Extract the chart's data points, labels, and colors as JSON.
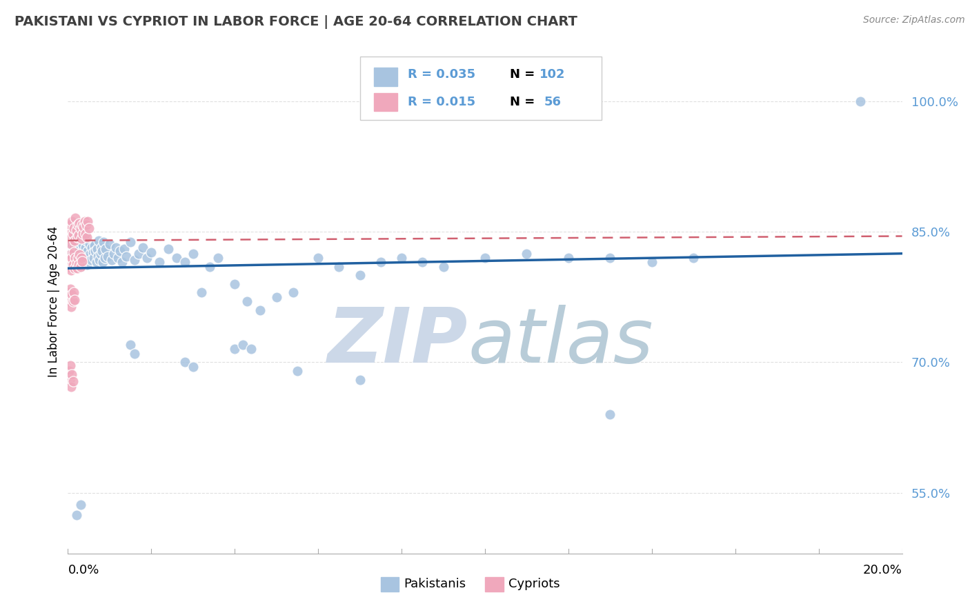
{
  "title": "PAKISTANI VS CYPRIOT IN LABOR FORCE | AGE 20-64 CORRELATION CHART",
  "source_text": "Source: ZipAtlas.com",
  "ylabel": "In Labor Force | Age 20-64",
  "yticks": [
    0.55,
    0.7,
    0.85,
    1.0
  ],
  "ytick_labels": [
    "55.0%",
    "70.0%",
    "85.0%",
    "100.0%"
  ],
  "xlim": [
    0.0,
    0.2
  ],
  "ylim": [
    0.48,
    1.06
  ],
  "blue_color": "#a8c4e0",
  "pink_color": "#f0a8bc",
  "blue_line_color": "#2060a0",
  "pink_line_color": "#d06070",
  "title_color": "#404040",
  "axis_label_color": "#5b9bd5",
  "blue_trend_x0": 0.0,
  "blue_trend_y0": 0.808,
  "blue_trend_x1": 0.2,
  "blue_trend_y1": 0.825,
  "pink_trend_x0": 0.0,
  "pink_trend_y0": 0.84,
  "pink_trend_x1": 0.2,
  "pink_trend_y1": 0.845,
  "pakistanis_x": [
    0.0006,
    0.0008,
    0.001,
    0.0012,
    0.0014,
    0.0015,
    0.0016,
    0.0018,
    0.002,
    0.0022,
    0.0024,
    0.0026,
    0.0028,
    0.003,
    0.003,
    0.0032,
    0.0034,
    0.0036,
    0.0038,
    0.004,
    0.0042,
    0.0044,
    0.0046,
    0.0048,
    0.005,
    0.0052,
    0.0054,
    0.0056,
    0.0058,
    0.006,
    0.0062,
    0.0064,
    0.0066,
    0.0068,
    0.007,
    0.0072,
    0.0074,
    0.0076,
    0.0078,
    0.008,
    0.0082,
    0.0084,
    0.0086,
    0.0088,
    0.009,
    0.0095,
    0.01,
    0.0105,
    0.011,
    0.0115,
    0.012,
    0.0125,
    0.013,
    0.0135,
    0.014,
    0.015,
    0.016,
    0.017,
    0.018,
    0.019,
    0.02,
    0.022,
    0.024,
    0.026,
    0.028,
    0.03,
    0.032,
    0.034,
    0.036,
    0.04,
    0.043,
    0.046,
    0.05,
    0.054,
    0.06,
    0.065,
    0.07,
    0.075,
    0.08,
    0.085,
    0.09,
    0.1,
    0.11,
    0.12,
    0.13,
    0.14,
    0.15,
    0.002,
    0.003,
    0.015,
    0.016,
    0.028,
    0.03,
    0.04,
    0.042,
    0.044,
    0.055,
    0.07,
    0.13,
    0.19
  ],
  "pakistanis_y": [
    0.82,
    0.834,
    0.826,
    0.818,
    0.832,
    0.84,
    0.822,
    0.828,
    0.835,
    0.815,
    0.842,
    0.825,
    0.83,
    0.838,
    0.81,
    0.82,
    0.828,
    0.835,
    0.818,
    0.825,
    0.832,
    0.84,
    0.812,
    0.828,
    0.82,
    0.836,
    0.825,
    0.818,
    0.832,
    0.826,
    0.82,
    0.834,
    0.828,
    0.815,
    0.83,
    0.822,
    0.84,
    0.818,
    0.825,
    0.832,
    0.828,
    0.815,
    0.838,
    0.82,
    0.83,
    0.822,
    0.836,
    0.818,
    0.825,
    0.832,
    0.82,
    0.828,
    0.815,
    0.83,
    0.822,
    0.838,
    0.818,
    0.825,
    0.832,
    0.82,
    0.826,
    0.815,
    0.83,
    0.82,
    0.815,
    0.825,
    0.78,
    0.81,
    0.82,
    0.79,
    0.77,
    0.76,
    0.775,
    0.78,
    0.82,
    0.81,
    0.8,
    0.815,
    0.82,
    0.815,
    0.81,
    0.82,
    0.825,
    0.82,
    0.82,
    0.815,
    0.82,
    0.524,
    0.536,
    0.72,
    0.71,
    0.7,
    0.695,
    0.715,
    0.72,
    0.715,
    0.69,
    0.68,
    0.64,
    1.0
  ],
  "cypriots_x": [
    0.0002,
    0.0004,
    0.0006,
    0.0008,
    0.001,
    0.0012,
    0.0014,
    0.0016,
    0.0018,
    0.002,
    0.0022,
    0.0024,
    0.0026,
    0.0028,
    0.003,
    0.0032,
    0.0034,
    0.0036,
    0.0038,
    0.004,
    0.0042,
    0.0044,
    0.0046,
    0.0048,
    0.005,
    0.0002,
    0.0004,
    0.0006,
    0.0008,
    0.001,
    0.0012,
    0.0014,
    0.0016,
    0.0018,
    0.002,
    0.0022,
    0.0024,
    0.0026,
    0.0028,
    0.003,
    0.0032,
    0.0034,
    0.0002,
    0.0004,
    0.0006,
    0.0008,
    0.001,
    0.0012,
    0.0014,
    0.0016,
    0.0002,
    0.0004,
    0.0006,
    0.0008,
    0.001,
    0.0012
  ],
  "cypriots_y": [
    0.85,
    0.842,
    0.858,
    0.836,
    0.862,
    0.848,
    0.854,
    0.84,
    0.866,
    0.852,
    0.844,
    0.858,
    0.846,
    0.86,
    0.854,
    0.842,
    0.858,
    0.848,
    0.856,
    0.862,
    0.848,
    0.858,
    0.844,
    0.862,
    0.854,
    0.818,
    0.81,
    0.824,
    0.806,
    0.82,
    0.812,
    0.826,
    0.808,
    0.82,
    0.814,
    0.808,
    0.82,
    0.812,
    0.824,
    0.81,
    0.82,
    0.816,
    0.78,
    0.77,
    0.784,
    0.764,
    0.778,
    0.77,
    0.78,
    0.772,
    0.69,
    0.68,
    0.696,
    0.672,
    0.686,
    0.678
  ]
}
